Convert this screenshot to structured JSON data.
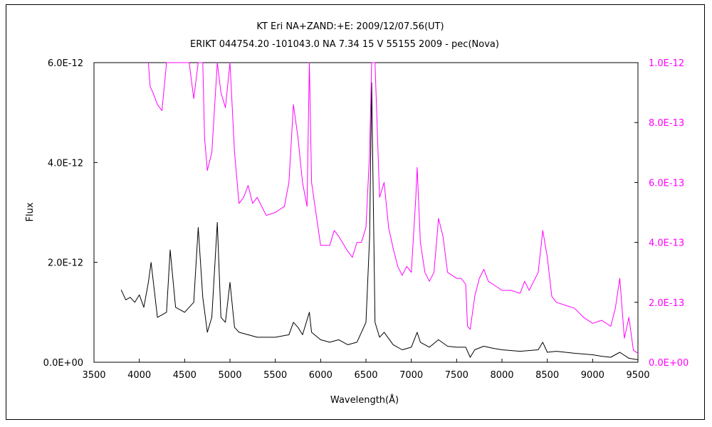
{
  "chart_data": {
    "type": "line",
    "title": "KT Eri    NA+ZAND:+E:    2009/12/07.56(UT)",
    "subtitle": "ERIKT 044754.20 -101043.0 NA 7.34 15 V 55155 2009 - pec(Nova)",
    "xlabel": "Wavelength(Å)",
    "ylabel": "Flux",
    "xlim": [
      3500,
      9500
    ],
    "ylim_left": [
      0,
      6e-12
    ],
    "ylim_right": [
      0,
      1e-12
    ],
    "x_ticks": [
      "3500",
      "4000",
      "4500",
      "5000",
      "5500",
      "6000",
      "6500",
      "7000",
      "7500",
      "8000",
      "8500",
      "9000",
      "9500"
    ],
    "y_left_ticks": [
      "0.0E+00",
      "2.0E-12",
      "4.0E-12",
      "6.0E-12"
    ],
    "y_right_ticks": [
      "0.0E+00",
      "2.0E-13",
      "4.0E-13",
      "6.0E-13",
      "8.0E-13",
      "1.0E-12"
    ],
    "colors": {
      "left_series": "#000000",
      "right_series": "#ff00ff",
      "right_axis": "#ff00ff"
    },
    "series": [
      {
        "axis": "left",
        "x": [
          3800,
          3850,
          3900,
          3950,
          4000,
          4050,
          4100,
          4130,
          4200,
          4300,
          4340,
          4400,
          4500,
          4600,
          4650,
          4700,
          4750,
          4800,
          4860,
          4900,
          4950,
          5000,
          5050,
          5100,
          5200,
          5300,
          5400,
          5500,
          5650,
          5700,
          5750,
          5800,
          5876,
          5900,
          6000,
          6100,
          6200,
          6300,
          6400,
          6500,
          6540,
          6563,
          6600,
          6650,
          6700,
          6800,
          6900,
          7000,
          7065,
          7100,
          7200,
          7300,
          7400,
          7500,
          7600,
          7650,
          7700,
          7800,
          7900,
          8000,
          8200,
          8400,
          8450,
          8500,
          8600,
          8800,
          9000,
          9100,
          9200,
          9300,
          9400,
          9500
        ],
        "y": [
          1.45e-12,
          1.25e-12,
          1.3e-12,
          1.2e-12,
          1.35e-12,
          1.1e-12,
          1.6e-12,
          2e-12,
          9e-13,
          1e-12,
          2.25e-12,
          1.1e-12,
          1e-12,
          1.2e-12,
          2.7e-12,
          1.3e-12,
          6e-13,
          9e-13,
          2.8e-12,
          9e-13,
          8e-13,
          1.6e-12,
          7e-13,
          6e-13,
          5.5e-13,
          5e-13,
          5e-13,
          5e-13,
          5.5e-13,
          8e-13,
          7e-13,
          5.5e-13,
          1e-12,
          6e-13,
          4.5e-13,
          4e-13,
          4.5e-13,
          3.5e-13,
          4e-13,
          8e-13,
          2.5e-12,
          5.6e-12,
          8e-13,
          5e-13,
          6e-13,
          3.5e-13,
          2.5e-13,
          3e-13,
          6e-13,
          4e-13,
          3e-13,
          4.5e-13,
          3.2e-13,
          3e-13,
          3e-13,
          1e-13,
          2.5e-13,
          3.2e-13,
          2.8e-13,
          2.5e-13,
          2.2e-13,
          2.5e-13,
          4e-13,
          2e-13,
          2.2e-13,
          1.8e-13,
          1.5e-13,
          1.2e-13,
          1e-13,
          2e-13,
          8e-14,
          5e-14
        ]
      },
      {
        "axis": "right",
        "x": [
          4100,
          4120,
          4150,
          4200,
          4250,
          4300,
          4340,
          4400,
          4500,
          4550,
          4600,
          4650,
          4700,
          4720,
          4750,
          4800,
          4860,
          4900,
          4950,
          5000,
          5050,
          5100,
          5150,
          5200,
          5250,
          5300,
          5400,
          5500,
          5600,
          5650,
          5700,
          5750,
          5800,
          5850,
          5876,
          5900,
          6000,
          6100,
          6150,
          6200,
          6300,
          6350,
          6400,
          6450,
          6500,
          6540,
          6563,
          6600,
          6650,
          6700,
          6750,
          6800,
          6850,
          6900,
          6950,
          7000,
          7050,
          7065,
          7100,
          7150,
          7200,
          7250,
          7300,
          7350,
          7400,
          7450,
          7500,
          7550,
          7600,
          7620,
          7650,
          7700,
          7750,
          7800,
          7850,
          7900,
          8000,
          8100,
          8200,
          8250,
          8300,
          8400,
          8450,
          8500,
          8550,
          8600,
          8700,
          8800,
          8900,
          9000,
          9100,
          9200,
          9250,
          9300,
          9350,
          9400,
          9450,
          9500
        ],
        "y": [
          1e-12,
          9.2e-13,
          9e-13,
          8.6e-13,
          8.4e-13,
          1e-12,
          1e-12,
          1e-12,
          1e-12,
          1e-12,
          8.8e-13,
          1e-12,
          1e-12,
          7.5e-13,
          6.4e-13,
          7e-13,
          1e-12,
          9e-13,
          8.5e-13,
          1e-12,
          7e-13,
          5.3e-13,
          5.5e-13,
          5.9e-13,
          5.3e-13,
          5.5e-13,
          4.9e-13,
          5e-13,
          5.2e-13,
          6e-13,
          8.6e-13,
          7.5e-13,
          6e-13,
          5.2e-13,
          1e-12,
          6e-13,
          3.9e-13,
          3.9e-13,
          4.4e-13,
          4.2e-13,
          3.7e-13,
          3.5e-13,
          4e-13,
          4e-13,
          4.5e-13,
          7e-13,
          1e-12,
          1e-12,
          5.5e-13,
          6e-13,
          4.5e-13,
          3.8e-13,
          3.2e-13,
          2.9e-13,
          3.2e-13,
          3e-13,
          5.5e-13,
          6.5e-13,
          4e-13,
          3e-13,
          2.7e-13,
          3e-13,
          4.8e-13,
          4.2e-13,
          3e-13,
          2.9e-13,
          2.8e-13,
          2.8e-13,
          2.6e-13,
          1.2e-13,
          1.1e-13,
          2.2e-13,
          2.8e-13,
          3.1e-13,
          2.7e-13,
          2.6e-13,
          2.4e-13,
          2.4e-13,
          2.3e-13,
          2.7e-13,
          2.4e-13,
          3e-13,
          4.4e-13,
          3.5e-13,
          2.2e-13,
          2e-13,
          1.9e-13,
          1.8e-13,
          1.5e-13,
          1.3e-13,
          1.4e-13,
          1.2e-13,
          1.8e-13,
          2.8e-13,
          8e-14,
          1.5e-13,
          4e-14,
          3e-14
        ]
      }
    ]
  }
}
